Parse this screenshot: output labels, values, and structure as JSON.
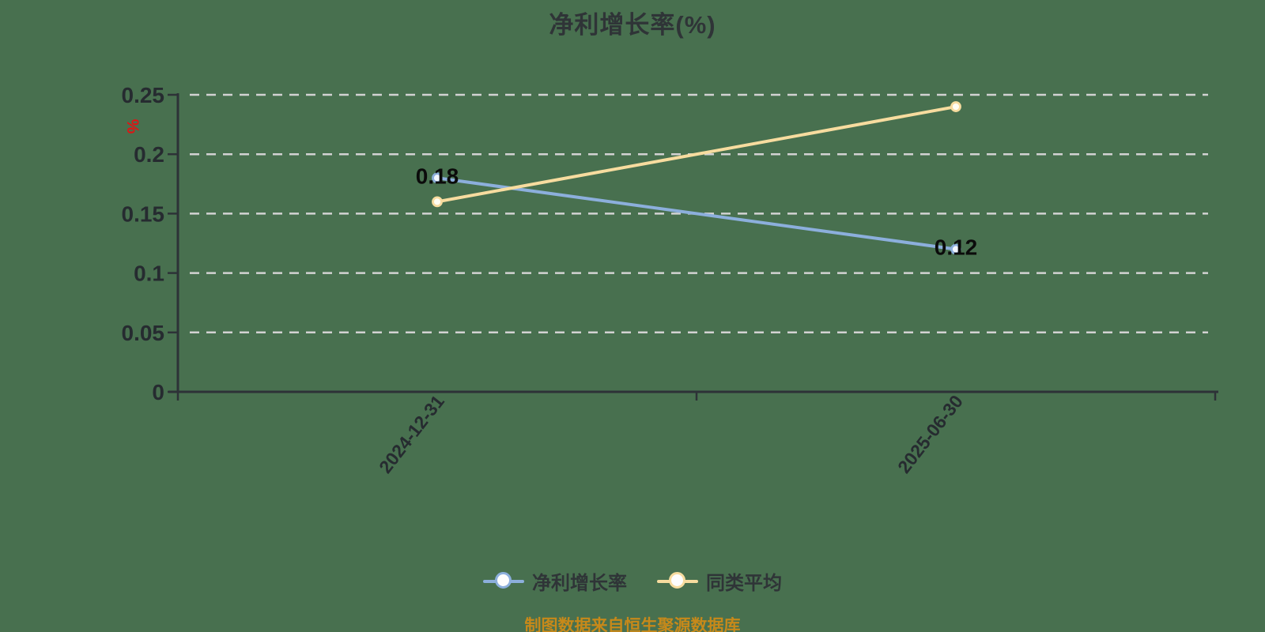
{
  "page": {
    "background_color": "#48704f",
    "text_color": "#2f3437"
  },
  "title": "净利增长率(%)",
  "source_note": "制图数据来自恒生聚源数据库",
  "source_note_color": "#c7891a",
  "chart_data": {
    "type": "line",
    "title": "净利增长率(%)",
    "categories": [
      "2024-12-31",
      "2025-06-30"
    ],
    "series": [
      {
        "name": "净利增长率",
        "values": [
          0.18,
          0.12
        ],
        "labels": [
          "0.18",
          "0.12"
        ],
        "color": "#8cafdc",
        "marker_fill": "#f2f7ff"
      },
      {
        "name": "同类平均",
        "values": [
          0.16,
          0.24
        ],
        "labels": [],
        "color": "#f7dc9f",
        "marker_fill": "#fffdf2"
      }
    ],
    "ylabel": "%",
    "ylabel_color": "#e01414",
    "ylim": [
      0,
      0.25
    ],
    "yticks": [
      0,
      0.05,
      0.1,
      0.15,
      0.2,
      0.25
    ],
    "ytick_labels": [
      "0",
      "0.05",
      "0.1",
      "0.15",
      "0.2",
      "0.25"
    ],
    "grid": "horizontal-dashed",
    "legend_position": "bottom",
    "colors": {
      "axis": "#2d3237",
      "grid": "#d2d2d2",
      "tick_label": "#262b30",
      "value_label": "#0b0b0b"
    }
  }
}
